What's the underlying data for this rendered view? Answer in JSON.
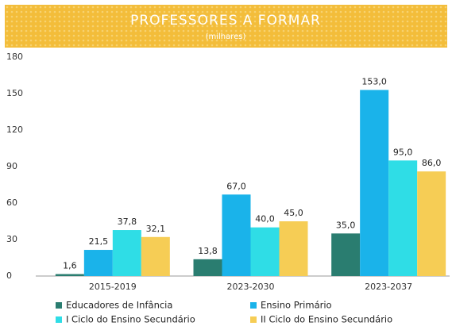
{
  "chart_data": {
    "type": "bar",
    "title": "PROFESSORES A FORMAR",
    "subtitle": "(milhares)",
    "categories": [
      "2015-2019",
      "2023-2030",
      "2023-2037"
    ],
    "series": [
      {
        "name": "Educadores de Infância",
        "color": "#2a7d70",
        "values": [
          1.6,
          13.8,
          35
        ],
        "value_labels": [
          "1,6",
          "13,8",
          "35,0"
        ]
      },
      {
        "name": "Ensino Primário",
        "color": "#1ab3ea",
        "values": [
          21.5,
          67,
          153
        ],
        "value_labels": [
          "21,5",
          "67,0",
          "153,0"
        ]
      },
      {
        "name": "I Ciclo do Ensino Secundário",
        "color": "#2fdde6",
        "values": [
          37.8,
          40,
          95
        ],
        "value_labels": [
          "37,8",
          "40,0",
          "95,0"
        ]
      },
      {
        "name": "II Ciclo do Ensino Secundário",
        "color": "#f6cd55",
        "values": [
          32.1,
          45,
          86
        ],
        "value_labels": [
          "32,1",
          "45,0",
          "86,0"
        ]
      }
    ],
    "ylim": [
      0,
      180
    ],
    "yticks": [
      0,
      30,
      60,
      90,
      120,
      150,
      180
    ],
    "grid": false
  }
}
